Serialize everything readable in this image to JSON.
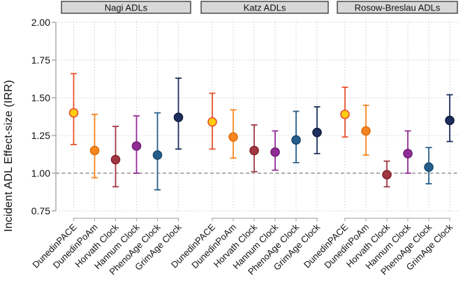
{
  "chart_data": {
    "type": "scatter",
    "subtype": "point-estimates-with-95ci-errorbars",
    "title": "",
    "ylabel": "Incident ADL Effect-size (IRR)",
    "xlabel": "",
    "ylim": [
      0.75,
      2.0
    ],
    "yticks": [
      2.0,
      1.75,
      1.5,
      1.25,
      1.0,
      0.75
    ],
    "ytick_labels": [
      "2.00",
      "1.75",
      "1.50",
      "1.25",
      "1.00",
      "0.75"
    ],
    "reference_line": 1.0,
    "grid": "dotted",
    "legend": "none",
    "categories": [
      "DunedinPACE",
      "DunedinPoAm",
      "Horvath Clock",
      "Hannum Clock",
      "PhenoAge Clock",
      "GrimAge Clock"
    ],
    "panels": [
      {
        "title": "Nagi  ADLs",
        "values": [
          {
            "category": "DunedinPACE",
            "est": 1.4,
            "lo": 1.19,
            "hi": 1.66
          },
          {
            "category": "DunedinPoAm",
            "est": 1.15,
            "lo": 0.97,
            "hi": 1.39
          },
          {
            "category": "Horvath Clock",
            "est": 1.09,
            "lo": 0.91,
            "hi": 1.31
          },
          {
            "category": "Hannum Clock",
            "est": 1.18,
            "lo": 1.0,
            "hi": 1.38
          },
          {
            "category": "PhenoAge Clock",
            "est": 1.12,
            "lo": 0.89,
            "hi": 1.4
          },
          {
            "category": "GrimAge Clock",
            "est": 1.37,
            "lo": 1.16,
            "hi": 1.63
          }
        ]
      },
      {
        "title": "Katz  ADLs",
        "values": [
          {
            "category": "DunedinPACE",
            "est": 1.34,
            "lo": 1.16,
            "hi": 1.53
          },
          {
            "category": "DunedinPoAm",
            "est": 1.24,
            "lo": 1.1,
            "hi": 1.42
          },
          {
            "category": "Horvath Clock",
            "est": 1.15,
            "lo": 1.01,
            "hi": 1.32
          },
          {
            "category": "Hannum Clock",
            "est": 1.14,
            "lo": 1.02,
            "hi": 1.28
          },
          {
            "category": "PhenoAge Clock",
            "est": 1.22,
            "lo": 1.07,
            "hi": 1.41
          },
          {
            "category": "GrimAge Clock",
            "est": 1.27,
            "lo": 1.13,
            "hi": 1.44
          }
        ]
      },
      {
        "title": "Rosow-Breslau ADLs",
        "values": [
          {
            "category": "DunedinPACE",
            "est": 1.39,
            "lo": 1.24,
            "hi": 1.57
          },
          {
            "category": "DunedinPoAm",
            "est": 1.28,
            "lo": 1.12,
            "hi": 1.45
          },
          {
            "category": "Horvath Clock",
            "est": 0.99,
            "lo": 0.91,
            "hi": 1.08
          },
          {
            "category": "Hannum Clock",
            "est": 1.13,
            "lo": 1.0,
            "hi": 1.28
          },
          {
            "category": "PhenoAge Clock",
            "est": 1.04,
            "lo": 0.93,
            "hi": 1.17
          },
          {
            "category": "GrimAge Clock",
            "est": 1.35,
            "lo": 1.21,
            "hi": 1.52
          }
        ]
      }
    ],
    "palette": {
      "DunedinPACE": {
        "fill": "#ffcd12",
        "stroke": "#e8522e",
        "bar": "#e8522e"
      },
      "DunedinPoAm": {
        "fill": "#f6861f",
        "stroke": "#e0700e",
        "bar": "#f6861f"
      },
      "Horvath Clock": {
        "fill": "#a13742",
        "stroke": "#84242e",
        "bar": "#a13742"
      },
      "Hannum Clock": {
        "fill": "#932d96",
        "stroke": "#6f1f75",
        "bar": "#932d96"
      },
      "PhenoAge Clock": {
        "fill": "#265e8b",
        "stroke": "#174a6f",
        "bar": "#265e8b"
      },
      "GrimAge Clock": {
        "fill": "#1e2f5d",
        "stroke": "#111e3f",
        "bar": "#1e2f5d"
      }
    },
    "style_colors": {
      "panel_header_fill": "#d8d8d8",
      "panel_header_border": "#222222",
      "grid_dotted": "#cccccc",
      "reference_dashed": "#7d7d7d",
      "y_spine": "#999999",
      "x_axis": "#b0b0b0",
      "text": "#111111"
    }
  }
}
